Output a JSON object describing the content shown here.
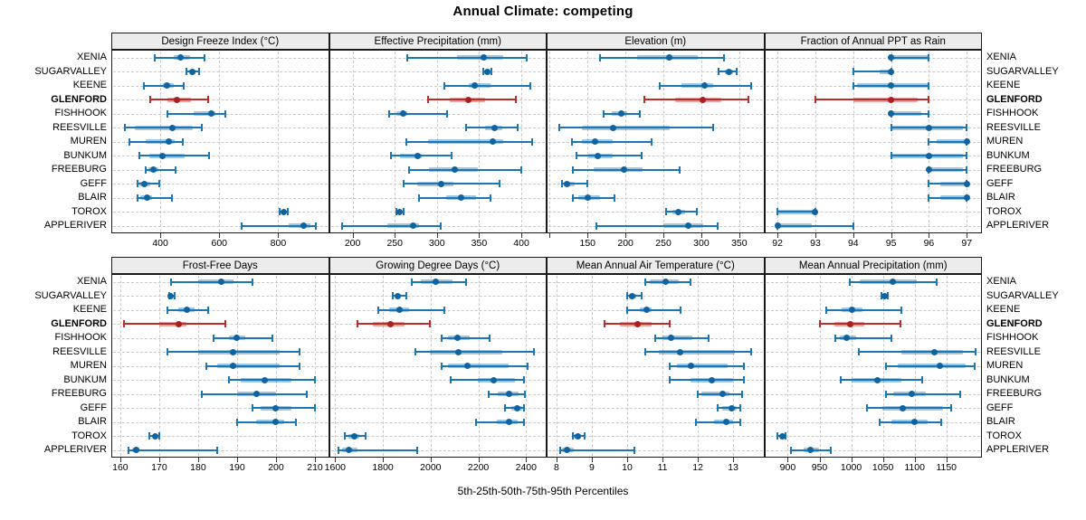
{
  "title": "Annual Climate: competing",
  "caption": "5th-25th-50th-75th-95th Percentiles",
  "colors": {
    "series_line": "#1d76b4",
    "series_band": "rgba(29,118,180,0.42)",
    "series_dot": "#0f649f",
    "highlight_line": "#bb2d28",
    "highlight_band": "rgba(187,45,40,0.42)",
    "highlight_dot": "#ad1f1f",
    "strip_bg": "#ececec",
    "grid": "#c9c9c9",
    "frame": "#1a1a1a"
  },
  "categories": [
    "XENIA",
    "SUGARVALLEY",
    "KEENE",
    "GLENFORD",
    "FISHHOOK",
    "REESVILLE",
    "MUREN",
    "BUNKUM",
    "FREEBURG",
    "GEFF",
    "BLAIR",
    "TOROX",
    "APPLERIVER"
  ],
  "highlight_category": "GLENFORD",
  "chart_data": [
    {
      "type": "dotplot_percentile",
      "title": "Design Freeze Index (°C)",
      "xlim": [
        234,
        972
      ],
      "ticks": [
        400,
        600,
        800
      ],
      "values": [
        [
          380,
          445,
          470,
          500,
          550
        ],
        [
          489,
          502,
          510,
          520,
          532
        ],
        [
          346,
          409,
          422,
          445,
          481
        ],
        [
          365,
          425,
          455,
          505,
          563
        ],
        [
          425,
          512,
          573,
          586,
          622
        ],
        [
          280,
          315,
          440,
          510,
          540
        ],
        [
          295,
          350,
          428,
          448,
          476
        ],
        [
          330,
          363,
          407,
          483,
          565
        ],
        [
          350,
          360,
          376,
          394,
          452
        ],
        [
          322,
          330,
          346,
          366,
          397
        ],
        [
          322,
          332,
          356,
          373,
          440
        ],
        [
          805,
          812,
          818,
          824,
          832
        ],
        [
          675,
          835,
          885,
          910,
          927
        ]
      ]
    },
    {
      "type": "dotplot_percentile",
      "title": "Effective Precipitation (mm)",
      "xlim": [
        172,
        430
      ],
      "ticks": [
        200,
        250,
        300,
        350,
        400
      ],
      "values": [
        [
          265,
          324,
          355,
          379,
          406
        ],
        [
          355,
          358,
          360,
          362,
          365
        ],
        [
          309,
          338,
          345,
          363,
          411
        ],
        [
          290,
          315,
          337,
          357,
          394
        ],
        [
          243,
          252,
          260,
          265,
          312
        ],
        [
          334,
          357,
          368,
          377,
          396
        ],
        [
          264,
          289,
          366,
          379,
          413
        ],
        [
          245,
          256,
          277,
          282,
          317
        ],
        [
          267,
          291,
          321,
          348,
          400
        ],
        [
          260,
          277,
          305,
          320,
          374
        ],
        [
          279,
          311,
          329,
          346,
          363
        ],
        [
          252,
          254,
          256,
          258,
          260
        ],
        [
          188,
          241,
          272,
          279,
          305
        ]
      ]
    },
    {
      "type": "dotplot_percentile",
      "title": "Elevation (m)",
      "xlim": [
        96,
        383
      ],
      "ticks": [
        150,
        200,
        250,
        300,
        350
      ],
      "minor_ticks": [
        100
      ],
      "values": [
        [
          167,
          215,
          258,
          295,
          330
        ],
        [
          323,
          331,
          337,
          342,
          347
        ],
        [
          245,
          274,
          304,
          316,
          366
        ],
        [
          225,
          266,
          302,
          326,
          362
        ],
        [
          171,
          182,
          194,
          202,
          219
        ],
        [
          113,
          143,
          184,
          258,
          315
        ],
        [
          129,
          143,
          160,
          183,
          234
        ],
        [
          135,
          151,
          163,
          183,
          221
        ],
        [
          131,
          158,
          198,
          223,
          272
        ],
        [
          116,
          119,
          123,
          133,
          150
        ],
        [
          131,
          138,
          150,
          166,
          186
        ],
        [
          254,
          262,
          270,
          279,
          294
        ],
        [
          162,
          250,
          283,
          302,
          321
        ]
      ]
    },
    {
      "type": "dotplot_percentile",
      "title": "Fraction of Annual PPT as Rain",
      "xlim": [
        91.65,
        97.4
      ],
      "ticks": [
        92,
        93,
        94,
        95,
        96,
        97
      ],
      "values": [
        [
          95,
          95,
          95,
          96,
          96
        ],
        [
          94,
          94.7,
          95,
          95,
          95
        ],
        [
          94,
          94.1,
          95,
          96,
          96
        ],
        [
          93,
          94,
          95,
          95.7,
          96
        ],
        [
          95,
          95,
          95,
          95.8,
          96
        ],
        [
          95,
          95,
          96,
          96.9,
          97
        ],
        [
          96,
          96.2,
          97,
          97,
          97
        ],
        [
          95,
          95,
          96,
          96.9,
          97
        ],
        [
          96,
          96,
          96,
          96.9,
          97
        ],
        [
          96,
          96.3,
          97,
          97,
          97
        ],
        [
          96,
          96.3,
          97,
          97,
          97
        ],
        [
          92,
          92,
          93,
          93,
          93
        ],
        [
          92,
          92,
          92,
          92.9,
          94
        ]
      ]
    },
    {
      "type": "dotplot_percentile",
      "title": "Frost-Free Days",
      "xlim": [
        157.7,
        213.6
      ],
      "ticks": [
        160,
        170,
        180,
        190,
        200,
        210
      ],
      "values": [
        [
          173,
          180,
          186,
          189,
          194
        ],
        [
          172.5,
          173,
          173,
          173.5,
          174
        ],
        [
          172,
          175,
          177,
          179,
          182.5
        ],
        [
          161,
          170,
          175,
          177,
          187
        ],
        [
          184,
          188,
          190,
          192,
          199
        ],
        [
          172,
          180,
          189,
          201,
          206
        ],
        [
          182,
          185,
          189,
          201,
          206
        ],
        [
          188,
          191,
          197,
          204,
          210
        ],
        [
          181,
          190,
          195,
          200,
          208
        ],
        [
          194,
          196,
          200,
          204,
          210
        ],
        [
          190,
          195,
          200,
          202,
          205
        ],
        [
          167.5,
          168.5,
          169,
          169.5,
          170
        ],
        [
          162,
          163,
          164,
          165,
          185
        ]
      ]
    },
    {
      "type": "dotplot_percentile",
      "title": "Growing Degree Days (°C)",
      "xlim": [
        1574,
        2486
      ],
      "ticks": [
        1600,
        1800,
        2000,
        2200,
        2400
      ],
      "values": [
        [
          1920,
          1960,
          2020,
          2090,
          2150
        ],
        [
          1840,
          1852,
          1864,
          1877,
          1900
        ],
        [
          1780,
          1827,
          1868,
          1909,
          2057
        ],
        [
          1695,
          1757,
          1830,
          1890,
          1995
        ],
        [
          2046,
          2073,
          2114,
          2162,
          2247
        ],
        [
          1938,
          1995,
          2118,
          2301,
          2432
        ],
        [
          2048,
          2073,
          2153,
          2327,
          2405
        ],
        [
          2084,
          2197,
          2263,
          2352,
          2390
        ],
        [
          2245,
          2280,
          2330,
          2370,
          2395
        ],
        [
          2310,
          2340,
          2362,
          2384,
          2392
        ],
        [
          2191,
          2276,
          2329,
          2364,
          2392
        ],
        [
          1640,
          1655,
          1681,
          1700,
          1729
        ],
        [
          1615,
          1628,
          1656,
          1694,
          1944
        ]
      ]
    },
    {
      "type": "dotplot_percentile",
      "title": "Mean Annual Air Temperature (°C)",
      "xlim": [
        7.72,
        13.88
      ],
      "ticks": [
        8,
        9,
        10,
        11,
        12,
        13
      ],
      "values": [
        [
          10.5,
          10.65,
          11.1,
          11.45,
          11.8
        ],
        [
          10.0,
          10.05,
          10.15,
          10.25,
          10.4
        ],
        [
          10.0,
          10.35,
          10.55,
          10.7,
          11.5
        ],
        [
          9.35,
          9.8,
          10.3,
          10.7,
          11.2
        ],
        [
          10.8,
          11.0,
          11.25,
          11.85,
          12.3
        ],
        [
          10.5,
          10.9,
          11.5,
          13.05,
          13.5
        ],
        [
          11.2,
          11.4,
          11.8,
          12.85,
          13.3
        ],
        [
          11.2,
          11.8,
          12.4,
          13.0,
          13.3
        ],
        [
          12.0,
          12.1,
          12.7,
          12.9,
          13.25
        ],
        [
          12.55,
          12.7,
          12.95,
          13.1,
          13.2
        ],
        [
          11.95,
          12.45,
          12.8,
          13.0,
          13.2
        ],
        [
          8.45,
          8.5,
          8.6,
          8.7,
          8.8
        ],
        [
          8.1,
          8.15,
          8.3,
          8.5,
          10.2
        ]
      ]
    },
    {
      "type": "dotplot_percentile",
      "title": "Mean Annual Precipitation (mm)",
      "xlim": [
        863,
        1206
      ],
      "ticks": [
        900,
        950,
        1000,
        1050,
        1100,
        1150
      ],
      "values": [
        [
          998,
          1014,
          1065,
          1104,
          1134
        ],
        [
          1048,
          1050,
          1052,
          1054,
          1057
        ],
        [
          960,
          985,
          1001,
          1018,
          1079
        ],
        [
          950,
          973,
          999,
          1020,
          1077
        ],
        [
          975,
          982,
          993,
          1008,
          1064
        ],
        [
          1012,
          1079,
          1131,
          1176,
          1196
        ],
        [
          1055,
          1074,
          1140,
          1180,
          1194
        ],
        [
          984,
          1001,
          1041,
          1079,
          1112
        ],
        [
          1055,
          1066,
          1095,
          1117,
          1172
        ],
        [
          1025,
          1049,
          1081,
          1144,
          1157
        ],
        [
          1045,
          1064,
          1100,
          1121,
          1142
        ],
        [
          884,
          888,
          891,
          893,
          896
        ],
        [
          905,
          925,
          936,
          949,
          968
        ]
      ]
    }
  ]
}
